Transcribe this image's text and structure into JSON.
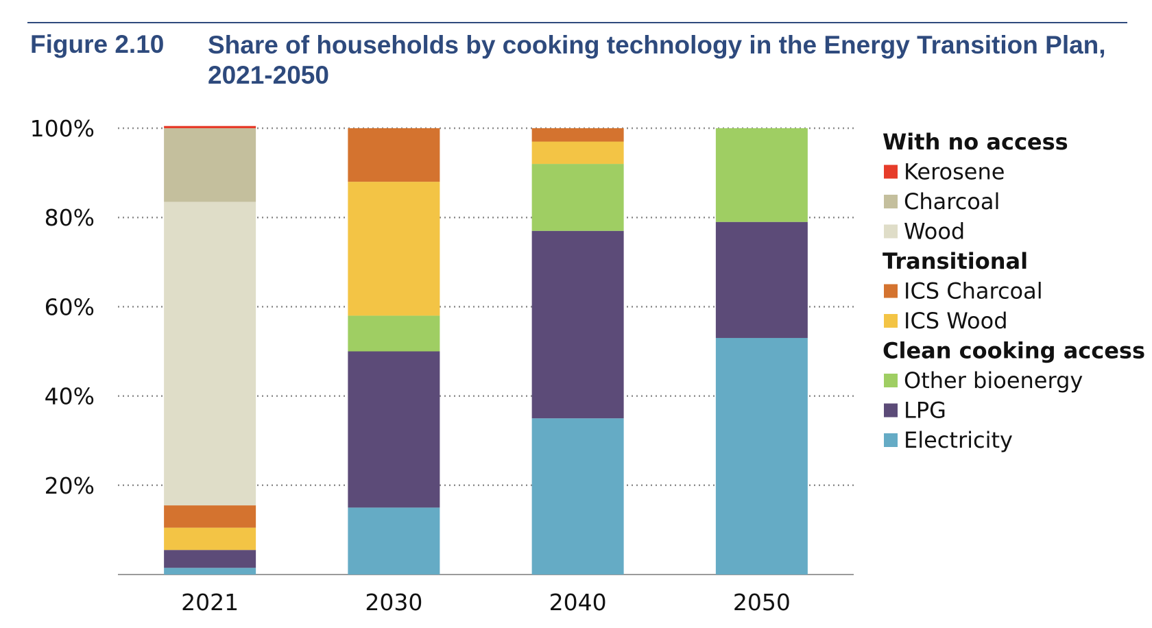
{
  "figure": {
    "label": "Figure 2.10",
    "title": "Share of households by cooking technology in the Energy Transition Plan, 2021-2050"
  },
  "chart_data": {
    "type": "bar",
    "stacked": true,
    "categories": [
      "2021",
      "2030",
      "2040",
      "2050"
    ],
    "ylim": [
      0,
      100
    ],
    "yticks": [
      "20%",
      "40%",
      "60%",
      "80%",
      "100%"
    ],
    "ytick_values": [
      20,
      40,
      60,
      80,
      100
    ],
    "grid": "horizontal dotted",
    "legend_position": "right",
    "legend_groups": [
      {
        "heading": "With no access",
        "series": [
          "Kerosene",
          "Charcoal",
          "Wood"
        ]
      },
      {
        "heading": "Transitional",
        "series": [
          "ICS Charcoal",
          "ICS Wood"
        ]
      },
      {
        "heading": "Clean cooking access",
        "series": [
          "Other bioenergy",
          "LPG",
          "Electricity"
        ]
      }
    ],
    "series": [
      {
        "name": "Electricity",
        "color": "#65abc5",
        "values": [
          1.5,
          15,
          35,
          53
        ]
      },
      {
        "name": "LPG",
        "color": "#5c4b78",
        "values": [
          4,
          35,
          42,
          26
        ]
      },
      {
        "name": "Other bioenergy",
        "color": "#9fce63",
        "values": [
          0,
          8,
          15,
          21
        ]
      },
      {
        "name": "ICS Wood",
        "color": "#f3c445",
        "values": [
          5,
          30,
          5,
          0
        ]
      },
      {
        "name": "ICS Charcoal",
        "color": "#d4732f",
        "values": [
          5,
          12,
          3,
          0
        ]
      },
      {
        "name": "Wood",
        "color": "#dfddc8",
        "values": [
          68,
          0,
          0,
          0
        ]
      },
      {
        "name": "Charcoal",
        "color": "#c4bf9d",
        "values": [
          16.5,
          0,
          0,
          0
        ]
      },
      {
        "name": "Kerosene",
        "color": "#e63c2a",
        "values": [
          0.5,
          0,
          0,
          0
        ]
      }
    ]
  }
}
